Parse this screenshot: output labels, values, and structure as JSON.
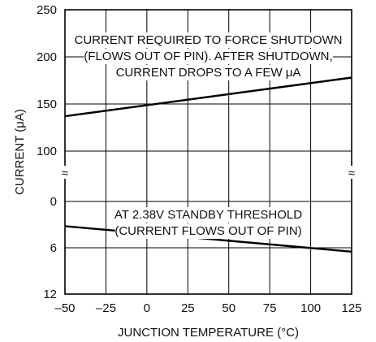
{
  "chart_data": {
    "type": "line",
    "xlabel": "JUNCTION TEMPERATURE (°C)",
    "ylabel": "CURRENT (μA)",
    "x_ticks": [
      "–50",
      "–25",
      "0",
      "25",
      "50",
      "75",
      "100",
      "125"
    ],
    "xlim": [
      -50,
      125
    ],
    "axis_break": "≈",
    "grid": true,
    "panels": [
      {
        "name": "upper",
        "ylim": [
          100,
          250
        ],
        "y_ticks": [
          "100",
          "150",
          "200",
          "250"
        ],
        "annotation": [
          "CURRENT REQUIRED TO FORCE SHUTDOWN",
          "(FLOWS OUT OF PIN). AFTER SHUTDOWN,",
          "CURRENT DROPS TO A FEW μA"
        ],
        "series": [
          {
            "x": [
              -50,
              125
            ],
            "values": [
              137,
              178
            ]
          }
        ]
      },
      {
        "name": "lower",
        "ylim": [
          0,
          12
        ],
        "y_ticks": [
          "0",
          "6",
          "12"
        ],
        "annotation": [
          "AT 2.38V STANDBY THRESHOLD",
          "(CURRENT FLOWS OUT OF PIN)"
        ],
        "series": [
          {
            "x": [
              -50,
              125
            ],
            "values": [
              3.2,
              6.5
            ]
          }
        ]
      }
    ]
  }
}
